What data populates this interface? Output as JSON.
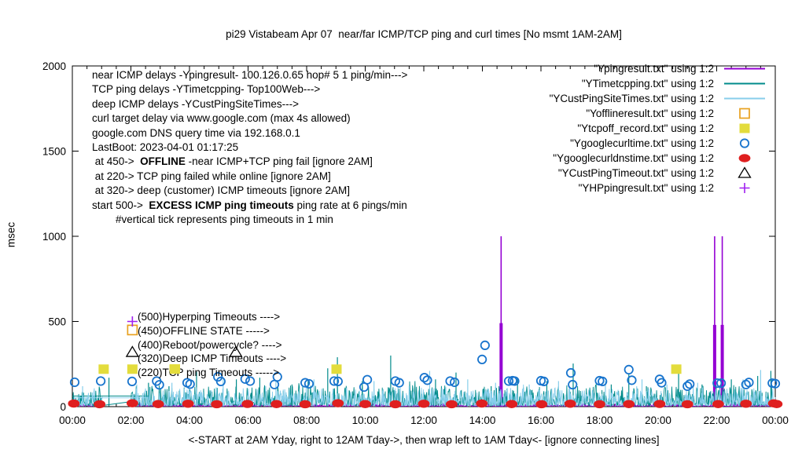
{
  "title": "pi29 Vistabeam Apr 07  near/far ICMP/TCP ping and curl times [No msmt 1AM-2AM]",
  "axes": {
    "y_label": "msec",
    "x_label": "<-START at 2AM Yday, right to 12AM Tday->, then wrap left to 1AM Tday<- [ignore connecting lines]",
    "x_ticks": [
      {
        "t": 0,
        "label": "00:00"
      },
      {
        "t": 2,
        "label": "02:00"
      },
      {
        "t": 4,
        "label": "04:00"
      },
      {
        "t": 6,
        "label": "06:00"
      },
      {
        "t": 8,
        "label": "08:00"
      },
      {
        "t": 10,
        "label": "10:00"
      },
      {
        "t": 12,
        "label": "12:00"
      },
      {
        "t": 14,
        "label": "14:00"
      },
      {
        "t": 16,
        "label": "16:00"
      },
      {
        "t": 18,
        "label": "18:00"
      },
      {
        "t": 20,
        "label": "20:00"
      },
      {
        "t": 22,
        "label": "22:00"
      },
      {
        "t": 24,
        "label": "00:00"
      }
    ],
    "y_ticks": [
      {
        "v": 0,
        "label": "0"
      },
      {
        "v": 500,
        "label": "500"
      },
      {
        "v": 1000,
        "label": "1000"
      },
      {
        "v": 1500,
        "label": "1500"
      },
      {
        "v": 2000,
        "label": "2000"
      }
    ]
  },
  "info_block": {
    "lines": [
      {
        "text": "near ICMP delays -Ypingresult- 100.126.0.65 hop# 5 1 ping/min--->"
      },
      {
        "text": "TCP ping delays -YTimetcpping- Top100Web--->"
      },
      {
        "text": "deep ICMP delays -YCustPingSiteTimes--->"
      },
      {
        "text": "curl target delay via www.google.com (max 4s allowed)"
      },
      {
        "text": "google.com DNS query time via 192.168.0.1"
      },
      {
        "text": "LastBoot: 2023-04-01 01:17:25"
      },
      {
        "segments": [
          {
            "t": " at 450->  "
          },
          {
            "t": "OFFLINE",
            "b": true
          },
          {
            "t": " -near ICMP+TCP ping fail [ignore 2AM]"
          }
        ]
      },
      {
        "text": " at 220-> TCP ping failed while online [ignore 2AM]"
      },
      {
        "text": " at 320-> deep (customer) ICMP timeouts [ignore 2AM]"
      },
      {
        "segments": [
          {
            "t": "start 500->  "
          },
          {
            "t": "EXCESS ICMP ping timeouts",
            "b": true
          },
          {
            "t": " ping rate at 6 pings/min"
          }
        ]
      },
      {
        "text": "        #vertical tick represents ping timeouts in 1 min"
      }
    ]
  },
  "legend": [
    {
      "label": "\"Ypingresult.txt\" using 1:2",
      "sample": "line",
      "color": "#9400D3"
    },
    {
      "label": "\"YTimetcpping.txt\" using 1:2",
      "sample": "line",
      "color": "#008B8B"
    },
    {
      "label": "\"YCustPingSiteTimes.txt\" using 1:2",
      "sample": "line",
      "color": "#87CEEB"
    },
    {
      "label": "\"Yofflineresult.txt\" using 1:2",
      "sample": "open-square",
      "color": "#E8A120"
    },
    {
      "label": "\"Ytcpoff_record.txt\" using 1:2",
      "sample": "filled-square",
      "color": "#E3DC3C"
    },
    {
      "label": "\"Ygooglecurltime.txt\" using 1:2",
      "sample": "open-circle",
      "color": "#1874CD"
    },
    {
      "label": "\"Ygooglecurldnstime.txt\" using 1:2",
      "sample": "filled-dot",
      "color": "#DF1F1F"
    },
    {
      "label": "\"YCustPingTimeout.txt\" using 1:2",
      "sample": "open-triangle",
      "color": "#000000"
    },
    {
      "label": "\"YHPpingresult.txt\" using 1:2",
      "sample": "plus",
      "color": "#A020F0"
    }
  ],
  "level_annotations": [
    {
      "value": 500,
      "label": "(500)Hyperping Timeouts ---->"
    },
    {
      "value": 450,
      "label": "(450)OFFLINE STATE ----->"
    },
    {
      "value": 400,
      "label": "(400)Reboot/powercycle? ---->"
    },
    {
      "value": 320,
      "label": "(320)Deep ICMP Timeouts ---->"
    },
    {
      "value": 220,
      "label": "(220)TCP ping Timeouts ----->"
    }
  ],
  "chart_data": {
    "type": "line",
    "title": "pi29 Vistabeam Apr 07  near/far ICMP/TCP ping and curl times [No msmt 1AM-2AM]",
    "xlabel": "<-START at 2AM Yday, right to 12AM Tday->, then wrap left to 1AM Tday<- [ignore connecting lines]",
    "ylabel": "msec",
    "xlim": [
      0,
      24
    ],
    "ylim": [
      0,
      2000
    ],
    "grid": false,
    "legend_position": "top-right-inside",
    "no_measurement_gap_hours": [
      1.02,
      1.97
    ],
    "series": [
      {
        "name": "Ypingresult.txt",
        "kind": "noise-line",
        "color": "#9400D3",
        "base": 2,
        "amp": 14,
        "seed": 33,
        "spikes": [
          [
            2.3,
            40
          ],
          [
            9.5,
            35
          ],
          [
            14.2,
            60
          ],
          [
            20.9,
            50
          ],
          [
            22.6,
            35
          ]
        ],
        "events": [
          {
            "t": 14.64,
            "thick_top": 490,
            "thin_top": 1000
          },
          {
            "t": 21.93,
            "thick_top": 480,
            "thin_top": 1000
          },
          {
            "t": 22.19,
            "thick_top": 480,
            "thin_top": 1000
          }
        ]
      },
      {
        "name": "YTimetcpping.txt",
        "kind": "noise-line",
        "color": "#008B8B",
        "base": 6,
        "amp": 120,
        "seed": 11,
        "connectors": [
          [
            [
              0.0,
              62
            ],
            [
              2.62,
              62
            ]
          ],
          [
            [
              0.97,
              5
            ],
            [
              1.95,
              28
            ]
          ]
        ],
        "spikes": [
          [
            1.25,
            170
          ],
          [
            2.6,
            140
          ],
          [
            3.3,
            120
          ],
          [
            4.24,
            205
          ],
          [
            5.6,
            160
          ],
          [
            6.4,
            170
          ],
          [
            7.5,
            130
          ],
          [
            8.05,
            150
          ],
          [
            8.72,
            225
          ],
          [
            9.05,
            290
          ],
          [
            9.9,
            150
          ],
          [
            10.87,
            300
          ],
          [
            12.4,
            160
          ],
          [
            13.1,
            200
          ],
          [
            14.3,
            120
          ],
          [
            15.2,
            170
          ],
          [
            16.2,
            150
          ],
          [
            17.1,
            253
          ],
          [
            18.4,
            130
          ],
          [
            19.0,
            190
          ],
          [
            19.6,
            120
          ],
          [
            20.7,
            240
          ],
          [
            21.5,
            130
          ],
          [
            22.5,
            160
          ],
          [
            23.4,
            180
          ],
          [
            23.85,
            210
          ]
        ]
      },
      {
        "name": "YCustPingSiteTimes.txt",
        "kind": "noise-line",
        "color": "#87CEEB",
        "base": 5,
        "amp": 105,
        "seed": 22,
        "connectors": [
          [
            [
              0.05,
              52
            ],
            [
              2.55,
              52
            ]
          ]
        ],
        "spikes": [
          [
            0.35,
            120
          ],
          [
            2.2,
            130
          ],
          [
            3.4,
            140
          ],
          [
            5.15,
            160
          ],
          [
            6.6,
            120
          ],
          [
            6.95,
            150
          ],
          [
            8.25,
            160
          ],
          [
            10.3,
            150
          ],
          [
            11.5,
            120
          ],
          [
            12.2,
            210
          ],
          [
            13.5,
            160
          ],
          [
            14.45,
            140
          ],
          [
            15.6,
            130
          ],
          [
            16.6,
            150
          ],
          [
            18.2,
            150
          ],
          [
            19.45,
            160
          ],
          [
            20.3,
            130
          ],
          [
            21.35,
            140
          ],
          [
            22.9,
            160
          ],
          [
            23.5,
            215
          ]
        ]
      },
      {
        "name": "Yofflineresult.txt",
        "kind": "open-square",
        "color": "#E8A120",
        "points": [
          [
            2.05,
            450
          ]
        ]
      },
      {
        "name": "Ytcpoff_record.txt",
        "kind": "filled-square",
        "color": "#E3DC3C",
        "points": [
          [
            1.07,
            220
          ],
          [
            2.05,
            220
          ],
          [
            3.49,
            220
          ],
          [
            9.02,
            220
          ],
          [
            20.62,
            220
          ]
        ]
      },
      {
        "name": "Ygooglecurltime.txt",
        "kind": "open-circle",
        "color": "#1874CD",
        "points": [
          [
            0.08,
            143
          ],
          [
            0.97,
            150
          ],
          [
            2.04,
            148
          ],
          [
            2.88,
            150
          ],
          [
            2.97,
            128
          ],
          [
            3.92,
            140
          ],
          [
            4.02,
            132
          ],
          [
            4.97,
            175
          ],
          [
            5.07,
            148
          ],
          [
            5.9,
            162
          ],
          [
            6.07,
            150
          ],
          [
            6.9,
            130
          ],
          [
            7.0,
            175
          ],
          [
            7.95,
            140
          ],
          [
            8.08,
            134
          ],
          [
            8.94,
            150
          ],
          [
            9.07,
            148
          ],
          [
            9.96,
            115
          ],
          [
            10.07,
            158
          ],
          [
            11.03,
            150
          ],
          [
            11.16,
            140
          ],
          [
            12.02,
            170
          ],
          [
            12.12,
            155
          ],
          [
            12.9,
            150
          ],
          [
            13.05,
            143
          ],
          [
            13.99,
            277
          ],
          [
            14.09,
            360
          ],
          [
            14.9,
            150
          ],
          [
            15.03,
            152
          ],
          [
            15.1,
            150
          ],
          [
            16.0,
            152
          ],
          [
            16.1,
            148
          ],
          [
            17.02,
            198
          ],
          [
            17.08,
            129
          ],
          [
            18.0,
            152
          ],
          [
            18.1,
            148
          ],
          [
            19.0,
            217
          ],
          [
            19.1,
            155
          ],
          [
            20.05,
            160
          ],
          [
            20.12,
            140
          ],
          [
            21.0,
            120
          ],
          [
            21.08,
            132
          ],
          [
            22.02,
            138
          ],
          [
            22.15,
            138
          ],
          [
            23.0,
            130
          ],
          [
            23.1,
            142
          ],
          [
            23.9,
            138
          ],
          [
            24.0,
            135
          ]
        ]
      },
      {
        "name": "Ygooglecurldnstime.txt",
        "kind": "filled-dot",
        "color": "#DF1F1F",
        "points": [
          [
            0.05,
            18
          ],
          [
            0.93,
            14
          ],
          [
            2.05,
            20
          ],
          [
            2.93,
            15
          ],
          [
            3.95,
            17
          ],
          [
            4.93,
            14
          ],
          [
            5.98,
            16
          ],
          [
            6.97,
            15
          ],
          [
            7.95,
            14
          ],
          [
            9.07,
            20
          ],
          [
            10.0,
            15
          ],
          [
            11.03,
            14
          ],
          [
            12.0,
            17
          ],
          [
            12.95,
            14
          ],
          [
            13.98,
            18
          ],
          [
            15.0,
            15
          ],
          [
            16.02,
            14
          ],
          [
            17.0,
            17
          ],
          [
            18.0,
            14
          ],
          [
            19.0,
            15
          ],
          [
            20.05,
            16
          ],
          [
            21.0,
            14
          ],
          [
            22.05,
            15
          ],
          [
            23.0,
            17
          ],
          [
            23.95,
            19
          ],
          [
            24.05,
            15
          ]
        ]
      },
      {
        "name": "YCustPingTimeout.txt",
        "kind": "open-triangle",
        "color": "#000000",
        "points": [
          [
            2.05,
            320
          ],
          [
            5.58,
            320
          ]
        ]
      },
      {
        "name": "YHPpingresult.txt",
        "kind": "plus",
        "color": "#A020F0",
        "points": [
          [
            2.05,
            500
          ]
        ]
      }
    ],
    "square_over_text_point": [
      3.49,
      220
    ]
  }
}
